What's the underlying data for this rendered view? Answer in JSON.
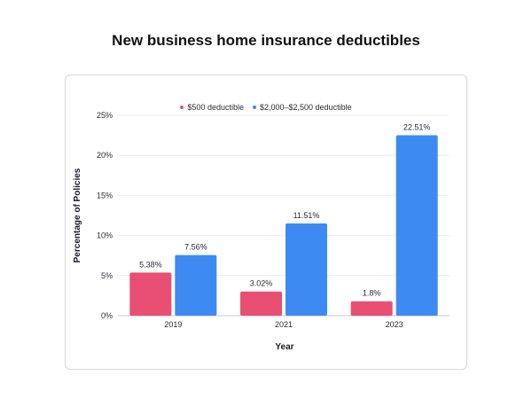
{
  "chart_data": {
    "type": "bar",
    "title": "New business home insurance deductibles",
    "xlabel": "Year",
    "ylabel": "Percentage of Policies",
    "categories": [
      "2019",
      "2021",
      "2023"
    ],
    "series": [
      {
        "name": "$500 deductible",
        "color": "#e84f72",
        "values": [
          5.38,
          3.02,
          1.8
        ],
        "labels": [
          "5.38%",
          "3.02%",
          "1.8%"
        ]
      },
      {
        "name": "$2,000–$2,500 deductible",
        "color": "#3d8bf2",
        "values": [
          7.56,
          11.51,
          22.51
        ],
        "labels": [
          "7.56%",
          "11.51%",
          "22.51%"
        ]
      }
    ],
    "ylim": [
      0,
      25
    ],
    "yticks": [
      0,
      5,
      10,
      15,
      20,
      25
    ],
    "ytick_labels": [
      "0%",
      "5%",
      "10%",
      "15%",
      "20%",
      "25%"
    ],
    "grid": true,
    "legend_position": "top-center"
  }
}
